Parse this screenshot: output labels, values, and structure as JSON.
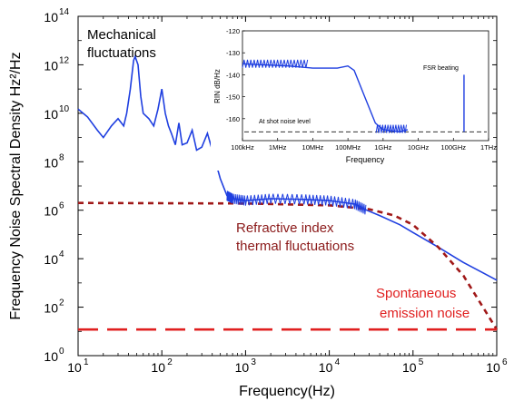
{
  "chart_data": {
    "type": "line",
    "xlabel": "Frequency(Hz)",
    "ylabel": "Frequency Noise Spectral Density Hz²/Hz",
    "xscale": "log",
    "yscale": "log",
    "xlim": [
      10,
      1000000
    ],
    "ylim": [
      1,
      100000000000000
    ],
    "x_ticks": [
      {
        "base": "10",
        "exp": "1"
      },
      {
        "base": "10",
        "exp": "2"
      },
      {
        "base": "10",
        "exp": "3"
      },
      {
        "base": "10",
        "exp": "4"
      },
      {
        "base": "10",
        "exp": "5"
      },
      {
        "base": "10",
        "exp": "6"
      }
    ],
    "y_ticks": [
      {
        "base": "10",
        "exp": "0"
      },
      {
        "base": "10",
        "exp": "2"
      },
      {
        "base": "10",
        "exp": "4"
      },
      {
        "base": "10",
        "exp": "6"
      },
      {
        "base": "10",
        "exp": "8"
      },
      {
        "base": "10",
        "exp": "10"
      },
      {
        "base": "10",
        "exp": "12"
      },
      {
        "base": "10",
        "exp": "14"
      }
    ],
    "annotations": {
      "mechanical_line1": "Mechanical",
      "mechanical_line2": "fluctuations",
      "refractive_line1": "Refractive index",
      "refractive_line2": "thermal fluctuations",
      "spontaneous_line1": "Spontaneous",
      "spontaneous_line2": "emission noise"
    },
    "series": [
      {
        "color": "#1f3fe0",
        "style": "solid",
        "points": [
          [
            10,
            15000000000.0
          ],
          [
            13,
            7000000000.0
          ],
          [
            17,
            2000000000.0
          ],
          [
            20,
            1000000000.0
          ],
          [
            25,
            3000000000.0
          ],
          [
            30,
            6000000000.0
          ],
          [
            35,
            3000000000.0
          ],
          [
            38,
            10000000000.0
          ],
          [
            42,
            100000000000.0
          ],
          [
            46,
            1500000000000.0
          ],
          [
            48,
            2200000000000.0
          ],
          [
            52,
            1000000000000.0
          ],
          [
            56,
            50000000000.0
          ],
          [
            60,
            10000000000.0
          ],
          [
            70,
            6000000000.0
          ],
          [
            80,
            3000000000.0
          ],
          [
            90,
            15000000000.0
          ],
          [
            100,
            100000000000.0
          ],
          [
            110,
            10000000000.0
          ],
          [
            120,
            3000000000.0
          ],
          [
            130,
            1500000000.0
          ],
          [
            145,
            500000000.0
          ],
          [
            160,
            4000000000.0
          ],
          [
            175,
            500000000.0
          ],
          [
            200,
            600000000.0
          ],
          [
            230,
            2000000000.0
          ],
          [
            260,
            300000000.0
          ],
          [
            300,
            400000000.0
          ],
          [
            350,
            1500000000.0
          ],
          [
            400,
            300000000.0
          ],
          [
            500,
            20000000.0
          ],
          [
            600,
            4000000.0
          ],
          [
            700,
            3000000.0
          ],
          [
            1000,
            2500000.0
          ],
          [
            2000,
            3000000.0
          ],
          [
            5000,
            2800000.0
          ],
          [
            10000,
            2500000.0
          ],
          [
            20000,
            1800000.0
          ],
          [
            28000,
            1000000.0
          ],
          [
            40000,
            600000.0
          ],
          [
            70000,
            250000.0
          ],
          [
            100000,
            120000.0
          ],
          [
            200000,
            30000.0
          ],
          [
            400000,
            7000.0
          ],
          [
            700000,
            2500.0
          ],
          [
            1000000,
            1300.0
          ]
        ]
      },
      {
        "color": "#a01818",
        "style": "dotted",
        "points": [
          [
            10,
            2000000.0
          ],
          [
            100,
            1950000.0
          ],
          [
            1000,
            1900000.0
          ],
          [
            10000,
            1600000.0
          ],
          [
            30000,
            1100000.0
          ],
          [
            60000,
            600000.0
          ],
          [
            100000,
            250000.0
          ],
          [
            200000,
            30000.0
          ],
          [
            400000,
            2000.0
          ],
          [
            1000000,
            12
          ]
        ]
      },
      {
        "color": "#e02020",
        "style": "dashed",
        "points": [
          [
            10,
            12
          ],
          [
            1000000,
            12
          ]
        ]
      }
    ],
    "inset": {
      "xlabel": "Frequency",
      "ylabel": "RIN dB/Hz",
      "xscale": "log",
      "xlim": [
        100000,
        1000000000000
      ],
      "ylim": [
        -170,
        -120
      ],
      "x_tick_labels": [
        "100kHz",
        "1MHz",
        "10MHz",
        "100MHz",
        "1GHz",
        "10GHz",
        "100GHz",
        "1THz"
      ],
      "y_tick_labels": [
        "-120",
        "-130",
        "-140",
        "-150",
        "-160"
      ],
      "annotations": {
        "shot_noise": "At shot noise level",
        "fsr": "FSR beating"
      },
      "shot_noise_level": -166,
      "series": [
        {
          "color": "#1f3fe0",
          "points": [
            [
              100000,
              -135
            ],
            [
              2000000,
              -136
            ],
            [
              10000000,
              -137
            ],
            [
              50000000,
              -137
            ],
            [
              100000000,
              -136
            ],
            [
              150000000,
              -138
            ],
            [
              300000000,
              -150
            ],
            [
              600000000,
              -162
            ],
            [
              1000000000,
              -165
            ],
            [
              3000000000,
              -166
            ],
            [
              5000000000,
              -165
            ]
          ]
        }
      ],
      "fsr_frequency": 200000000000,
      "fsr_peak": -140
    }
  }
}
